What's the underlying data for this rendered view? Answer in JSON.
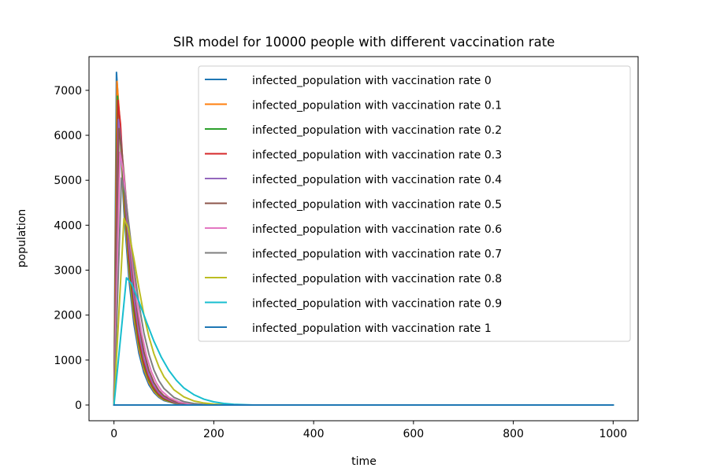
{
  "chart_data": {
    "type": "line",
    "title": "SIR model for 10000 people with different vaccination rate",
    "xlabel": "time",
    "ylabel": "population",
    "xlim": [
      -50,
      1050
    ],
    "ylim": [
      -350,
      7750
    ],
    "xticks": [
      0,
      200,
      400,
      600,
      800,
      1000
    ],
    "xtick_labels": [
      "0",
      "200",
      "400",
      "600",
      "800",
      "1000"
    ],
    "yticks": [
      0,
      1000,
      2000,
      3000,
      4000,
      5000,
      6000,
      7000
    ],
    "ytick_labels": [
      "0",
      "1000",
      "2000",
      "3000",
      "4000",
      "5000",
      "6000",
      "7000"
    ],
    "grid": false,
    "legend_position": "top-right",
    "series": [
      {
        "name": "infected_population with vaccination rate 0",
        "color": "#1f77b4",
        "peak_x": 5,
        "peak_y": 7400,
        "points": [
          [
            0,
            0
          ],
          [
            5,
            7400
          ],
          [
            10,
            6500
          ],
          [
            20,
            4300
          ],
          [
            30,
            2800
          ],
          [
            40,
            1800
          ],
          [
            50,
            1150
          ],
          [
            60,
            720
          ],
          [
            70,
            450
          ],
          [
            80,
            280
          ],
          [
            90,
            170
          ],
          [
            100,
            100
          ],
          [
            120,
            40
          ],
          [
            140,
            15
          ],
          [
            160,
            5
          ],
          [
            200,
            0
          ],
          [
            1000,
            0
          ]
        ]
      },
      {
        "name": "infected_population with vaccination rate 0.1",
        "color": "#ff7f0e",
        "peak_x": 6,
        "peak_y": 7200,
        "points": [
          [
            0,
            0
          ],
          [
            6,
            7200
          ],
          [
            10,
            6600
          ],
          [
            20,
            4500
          ],
          [
            30,
            3000
          ],
          [
            40,
            1950
          ],
          [
            50,
            1250
          ],
          [
            60,
            800
          ],
          [
            70,
            500
          ],
          [
            80,
            310
          ],
          [
            90,
            190
          ],
          [
            100,
            115
          ],
          [
            120,
            45
          ],
          [
            140,
            17
          ],
          [
            160,
            6
          ],
          [
            200,
            0
          ],
          [
            1000,
            0
          ]
        ]
      },
      {
        "name": "infected_population with vaccination rate 0.2",
        "color": "#2ca02c",
        "peak_x": 7,
        "peak_y": 6870,
        "points": [
          [
            0,
            0
          ],
          [
            7,
            6870
          ],
          [
            12,
            6300
          ],
          [
            20,
            4700
          ],
          [
            30,
            3150
          ],
          [
            40,
            2100
          ],
          [
            50,
            1350
          ],
          [
            60,
            870
          ],
          [
            70,
            550
          ],
          [
            80,
            345
          ],
          [
            90,
            215
          ],
          [
            100,
            130
          ],
          [
            120,
            50
          ],
          [
            140,
            19
          ],
          [
            160,
            7
          ],
          [
            200,
            0
          ],
          [
            1000,
            0
          ]
        ]
      },
      {
        "name": "infected_population with vaccination rate 0.3",
        "color": "#d62728",
        "peak_x": 8,
        "peak_y": 6780,
        "points": [
          [
            0,
            0
          ],
          [
            8,
            6780
          ],
          [
            13,
            6250
          ],
          [
            20,
            4900
          ],
          [
            30,
            3300
          ],
          [
            40,
            2250
          ],
          [
            50,
            1450
          ],
          [
            60,
            940
          ],
          [
            70,
            600
          ],
          [
            80,
            380
          ],
          [
            90,
            240
          ],
          [
            100,
            150
          ],
          [
            120,
            58
          ],
          [
            140,
            22
          ],
          [
            160,
            8
          ],
          [
            200,
            0
          ],
          [
            1000,
            0
          ]
        ]
      },
      {
        "name": "infected_population with vaccination rate 0.4",
        "color": "#9467bd",
        "peak_x": 9,
        "peak_y": 6350,
        "points": [
          [
            0,
            0
          ],
          [
            9,
            6350
          ],
          [
            14,
            5900
          ],
          [
            20,
            5000
          ],
          [
            30,
            3500
          ],
          [
            40,
            2400
          ],
          [
            50,
            1600
          ],
          [
            60,
            1040
          ],
          [
            70,
            670
          ],
          [
            80,
            430
          ],
          [
            90,
            275
          ],
          [
            100,
            175
          ],
          [
            120,
            68
          ],
          [
            140,
            26
          ],
          [
            160,
            10
          ],
          [
            200,
            0
          ],
          [
            1000,
            0
          ]
        ]
      },
      {
        "name": "infected_population with vaccination rate 0.5",
        "color": "#8c564b",
        "peak_x": 10,
        "peak_y": 6150,
        "points": [
          [
            0,
            0
          ],
          [
            10,
            6150
          ],
          [
            15,
            5750
          ],
          [
            22,
            4900
          ],
          [
            30,
            3800
          ],
          [
            40,
            2650
          ],
          [
            50,
            1800
          ],
          [
            60,
            1180
          ],
          [
            70,
            770
          ],
          [
            80,
            500
          ],
          [
            90,
            320
          ],
          [
            100,
            205
          ],
          [
            120,
            82
          ],
          [
            140,
            32
          ],
          [
            160,
            12
          ],
          [
            200,
            0
          ],
          [
            1000,
            0
          ]
        ]
      },
      {
        "name": "infected_population with vaccination rate 0.6",
        "color": "#e377c2",
        "peak_x": 12,
        "peak_y": 5620,
        "points": [
          [
            0,
            0
          ],
          [
            12,
            5620
          ],
          [
            18,
            5250
          ],
          [
            25,
            4500
          ],
          [
            35,
            3350
          ],
          [
            45,
            2350
          ],
          [
            55,
            1620
          ],
          [
            65,
            1100
          ],
          [
            75,
            740
          ],
          [
            85,
            490
          ],
          [
            95,
            320
          ],
          [
            110,
            170
          ],
          [
            130,
            70
          ],
          [
            150,
            28
          ],
          [
            170,
            10
          ],
          [
            210,
            0
          ],
          [
            1000,
            0
          ]
        ]
      },
      {
        "name": "infected_population with vaccination rate 0.7",
        "color": "#7f7f7f",
        "peak_x": 15,
        "peak_y": 5050,
        "points": [
          [
            0,
            0
          ],
          [
            15,
            5050
          ],
          [
            22,
            4700
          ],
          [
            30,
            4000
          ],
          [
            40,
            3050
          ],
          [
            50,
            2250
          ],
          [
            60,
            1600
          ],
          [
            70,
            1130
          ],
          [
            80,
            780
          ],
          [
            90,
            540
          ],
          [
            100,
            370
          ],
          [
            120,
            170
          ],
          [
            140,
            75
          ],
          [
            160,
            32
          ],
          [
            180,
            13
          ],
          [
            220,
            0
          ],
          [
            1000,
            0
          ]
        ]
      },
      {
        "name": "infected_population with vaccination rate 0.8",
        "color": "#bcbd22",
        "peak_x": 20,
        "peak_y": 4150,
        "points": [
          [
            0,
            0
          ],
          [
            20,
            4150
          ],
          [
            28,
            3950
          ],
          [
            40,
            3250
          ],
          [
            50,
            2600
          ],
          [
            60,
            2000
          ],
          [
            70,
            1520
          ],
          [
            80,
            1140
          ],
          [
            90,
            850
          ],
          [
            100,
            630
          ],
          [
            120,
            340
          ],
          [
            140,
            180
          ],
          [
            160,
            90
          ],
          [
            180,
            45
          ],
          [
            200,
            20
          ],
          [
            240,
            0
          ],
          [
            1000,
            0
          ]
        ]
      },
      {
        "name": "infected_population with vaccination rate 0.9",
        "color": "#17becf",
        "peak_x": 25,
        "peak_y": 2830,
        "points": [
          [
            0,
            0
          ],
          [
            25,
            2830
          ],
          [
            35,
            2700
          ],
          [
            50,
            2300
          ],
          [
            65,
            1850
          ],
          [
            80,
            1420
          ],
          [
            95,
            1060
          ],
          [
            110,
            770
          ],
          [
            125,
            550
          ],
          [
            140,
            380
          ],
          [
            160,
            230
          ],
          [
            180,
            130
          ],
          [
            200,
            70
          ],
          [
            220,
            35
          ],
          [
            240,
            15
          ],
          [
            280,
            0
          ],
          [
            1000,
            0
          ]
        ]
      },
      {
        "name": "infected_population with vaccination rate 1",
        "color": "#1f77b4",
        "peak_x": 0,
        "peak_y": 0,
        "points": [
          [
            0,
            0
          ],
          [
            1000,
            0
          ]
        ]
      }
    ]
  }
}
